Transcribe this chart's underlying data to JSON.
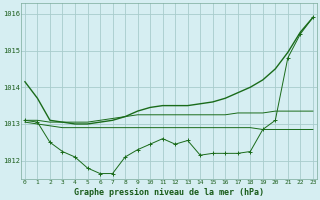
{
  "x": [
    0,
    1,
    2,
    3,
    4,
    5,
    6,
    7,
    8,
    9,
    10,
    11,
    12,
    13,
    14,
    15,
    16,
    17,
    18,
    19,
    20,
    21,
    22,
    23
  ],
  "series1_smooth": [
    1014.15,
    1013.7,
    1013.1,
    1013.05,
    1013.0,
    1013.0,
    1013.05,
    1013.1,
    1013.2,
    1013.35,
    1013.45,
    1013.5,
    1013.5,
    1013.5,
    1013.55,
    1013.6,
    1013.7,
    1013.85,
    1014.0,
    1014.2,
    1014.5,
    1014.95,
    1015.5,
    1015.9
  ],
  "series2_markers": [
    1013.1,
    1013.05,
    1012.5,
    1012.25,
    1012.1,
    1011.8,
    1011.65,
    1011.65,
    1012.1,
    1012.3,
    1012.45,
    1012.6,
    1012.45,
    1012.55,
    1012.15,
    1012.2,
    1012.2,
    1012.2,
    1012.25,
    1012.85,
    1013.1,
    1014.8,
    1015.45,
    1015.9
  ],
  "series3_flat_high": [
    1013.1,
    1013.1,
    1013.05,
    1013.05,
    1013.05,
    1013.05,
    1013.1,
    1013.15,
    1013.2,
    1013.25,
    1013.25,
    1013.25,
    1013.25,
    1013.25,
    1013.25,
    1013.25,
    1013.25,
    1013.3,
    1013.3,
    1013.3,
    1013.35,
    1013.35,
    1013.35,
    1013.35
  ],
  "series4_flat_low": [
    1013.05,
    1013.0,
    1012.95,
    1012.9,
    1012.9,
    1012.9,
    1012.9,
    1012.9,
    1012.9,
    1012.9,
    1012.9,
    1012.9,
    1012.9,
    1012.9,
    1012.9,
    1012.9,
    1012.9,
    1012.9,
    1012.9,
    1012.85,
    1012.85,
    1012.85,
    1012.85,
    1012.85
  ],
  "bg_color": "#d6eef2",
  "grid_color": "#a8cccc",
  "line_color": "#1a6b1a",
  "xlabel": "Graphe pression niveau de la mer (hPa)",
  "ylim": [
    1011.5,
    1016.3
  ],
  "yticks": [
    1012,
    1013,
    1014,
    1015,
    1016
  ],
  "xticks": [
    0,
    1,
    2,
    3,
    4,
    5,
    6,
    7,
    8,
    9,
    10,
    11,
    12,
    13,
    14,
    15,
    16,
    17,
    18,
    19,
    20,
    21,
    22,
    23
  ]
}
